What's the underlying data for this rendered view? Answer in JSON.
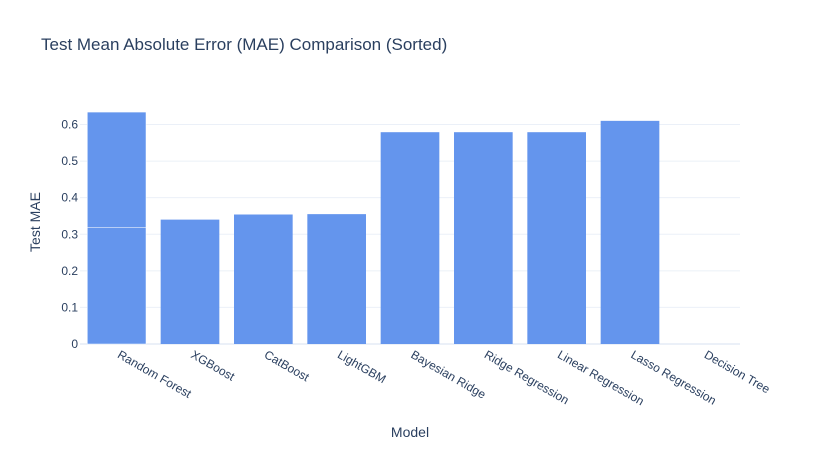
{
  "chart_data": {
    "type": "bar",
    "title": "Test Mean Absolute Error (MAE) Comparison (Sorted)",
    "xlabel": "Model",
    "ylabel": "Test MAE",
    "categories": [
      "Random Forest",
      "XGBoost",
      "CatBoost",
      "LightGBM",
      "Bayesian Ridge",
      "Ridge Regression",
      "Linear Regression",
      "Lasso Regression",
      "Decision Tree"
    ],
    "values": [
      0.634,
      0.34,
      0.354,
      0.355,
      0.579,
      0.579,
      0.579,
      0.61,
      0.0
    ],
    "bar_segments": [
      {
        "category": "Random Forest",
        "segments": [
          0.318,
          0.316
        ]
      }
    ],
    "y_ticks": [
      0,
      0.1,
      0.2,
      0.3,
      0.4,
      0.5,
      0.6
    ],
    "y_tick_labels": [
      "0",
      "0.1",
      "0.2",
      "0.3",
      "0.4",
      "0.5",
      "0.6"
    ],
    "ylim": [
      0,
      0.667
    ],
    "grid": true,
    "bar_color": "#6495ED",
    "grid_color": "#EBF0F8",
    "text_color": "#2a3f5f"
  }
}
